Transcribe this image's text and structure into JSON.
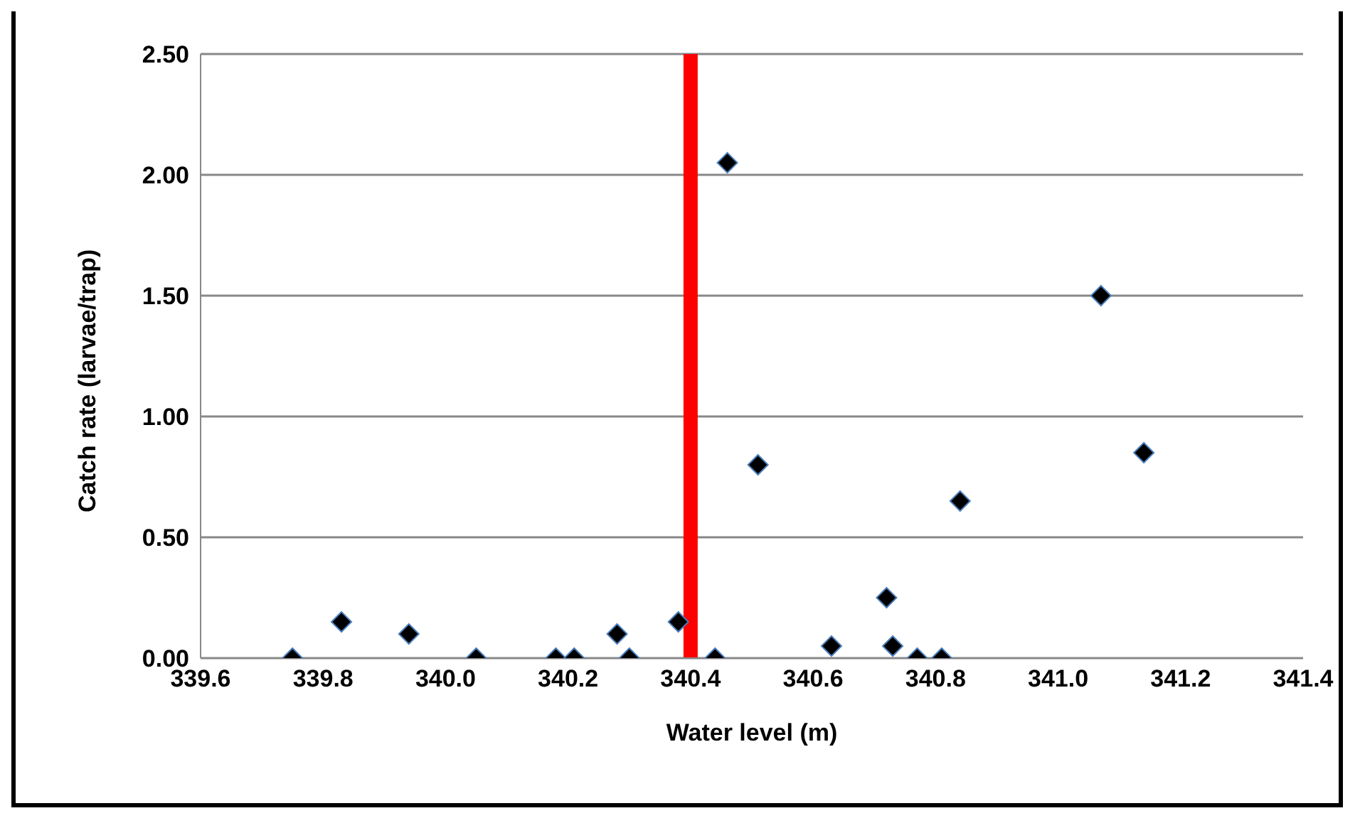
{
  "chart_data": {
    "type": "scatter",
    "xlabel": "Water level (m)",
    "ylabel": "Catch rate (larvae/trap)",
    "x": [
      339.75,
      339.83,
      339.94,
      340.05,
      340.18,
      340.21,
      340.28,
      340.3,
      340.38,
      340.44,
      340.46,
      340.51,
      340.63,
      340.72,
      340.73,
      340.77,
      340.81,
      340.84,
      341.07,
      341.14
    ],
    "series": [
      {
        "color": "#000000",
        "values": [
          0,
          0.15,
          0.1,
          0,
          0,
          0,
          0.1,
          0,
          0.15,
          0,
          2.05,
          0.8,
          0.05,
          0.25,
          0.05,
          0,
          0,
          0.65,
          1.5,
          0.85
        ]
      }
    ],
    "xlim": [
      339.6,
      341.4
    ],
    "xticks": [
      339.6,
      339.8,
      {
        "value": 340,
        "label": "340.0"
      },
      340.2,
      340.4,
      340.6,
      340.8,
      {
        "value": 341,
        "label": "341.0"
      },
      341.2,
      341.4
    ],
    "ylim": [
      0,
      2.5
    ],
    "yticks": [
      {
        "value": 0,
        "label": "0.00"
      },
      {
        "value": 0.5,
        "label": "0.50"
      },
      {
        "value": 1,
        "label": "1.00"
      },
      {
        "value": 1.5,
        "label": "1.50"
      },
      {
        "value": 2,
        "label": "2.00"
      },
      {
        "value": 2.5,
        "label": "2.50"
      }
    ],
    "ref_lines": [
      {
        "axis": "x",
        "value": 340.4,
        "color": "#ff0000"
      }
    ],
    "grid": "y",
    "marker": "diamond",
    "legend": false
  }
}
